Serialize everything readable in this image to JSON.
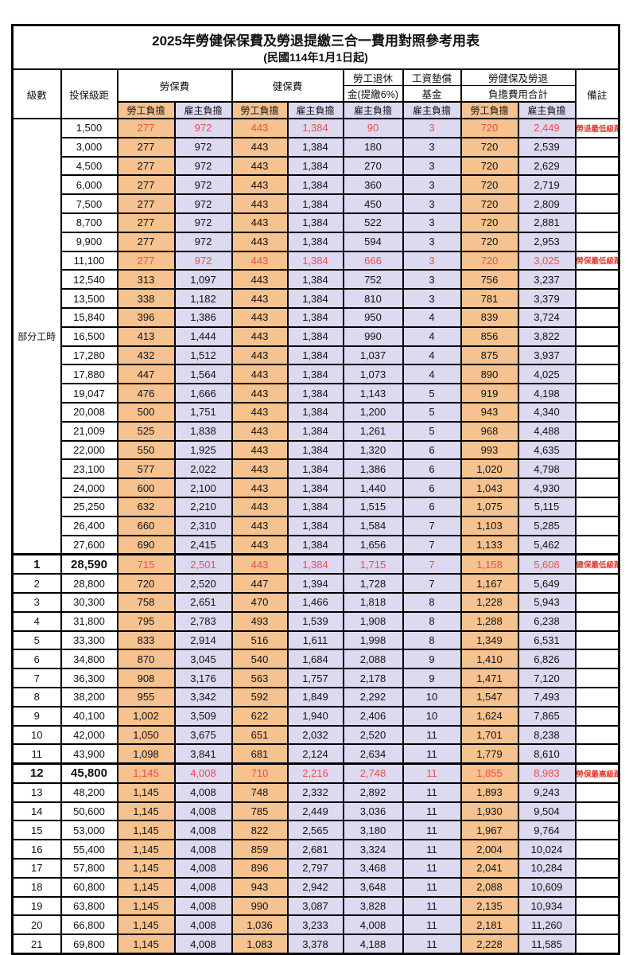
{
  "title": {
    "main": "2025年勞健保保費及勞退提繳三合一費用對照參考用表",
    "sub": "(民國114年1月1日起)"
  },
  "header": {
    "level": "級數",
    "bracket": "投保級距",
    "labor": "勞保費",
    "health": "健保費",
    "pension_line1": "勞工退休",
    "pension_line2": "金(提繳6%)",
    "wage_fund_line1": "工資墊償",
    "wage_fund_line2": "基金",
    "total_line1": "勞健保及勞退",
    "total_line2": "負擔費用合計",
    "note": "備註",
    "employee": "勞工負擔",
    "employer": "雇主負擔"
  },
  "part_time_label": "部分工時",
  "colors": {
    "employee_bg": "#F6C28F",
    "employer_bg": "#DDD9F0",
    "highlight_text": "#EE4E4B",
    "note_text": "#E03A34",
    "border": "#000000"
  },
  "rows": [
    {
      "level": "",
      "bracket": "1,500",
      "cells": [
        "277",
        "972",
        "443",
        "1,384",
        "90",
        "3",
        "720",
        "2,449"
      ],
      "note": "勞退最低級距",
      "red": true,
      "big": false
    },
    {
      "level": "",
      "bracket": "3,000",
      "cells": [
        "277",
        "972",
        "443",
        "1,384",
        "180",
        "3",
        "720",
        "2,539"
      ],
      "note": "",
      "red": false,
      "big": false
    },
    {
      "level": "",
      "bracket": "4,500",
      "cells": [
        "277",
        "972",
        "443",
        "1,384",
        "270",
        "3",
        "720",
        "2,629"
      ],
      "note": "",
      "red": false,
      "big": false
    },
    {
      "level": "",
      "bracket": "6,000",
      "cells": [
        "277",
        "972",
        "443",
        "1,384",
        "360",
        "3",
        "720",
        "2,719"
      ],
      "note": "",
      "red": false,
      "big": false
    },
    {
      "level": "",
      "bracket": "7,500",
      "cells": [
        "277",
        "972",
        "443",
        "1,384",
        "450",
        "3",
        "720",
        "2,809"
      ],
      "note": "",
      "red": false,
      "big": false
    },
    {
      "level": "",
      "bracket": "8,700",
      "cells": [
        "277",
        "972",
        "443",
        "1,384",
        "522",
        "3",
        "720",
        "2,881"
      ],
      "note": "",
      "red": false,
      "big": false
    },
    {
      "level": "",
      "bracket": "9,900",
      "cells": [
        "277",
        "972",
        "443",
        "1,384",
        "594",
        "3",
        "720",
        "2,953"
      ],
      "note": "",
      "red": false,
      "big": false
    },
    {
      "level": "",
      "bracket": "11,100",
      "cells": [
        "277",
        "972",
        "443",
        "1,384",
        "666",
        "3",
        "720",
        "3,025"
      ],
      "note": "勞保最低級距",
      "red": true,
      "big": false
    },
    {
      "level": "",
      "bracket": "12,540",
      "cells": [
        "313",
        "1,097",
        "443",
        "1,384",
        "752",
        "3",
        "756",
        "3,237"
      ],
      "note": "",
      "red": false,
      "big": false
    },
    {
      "level": "",
      "bracket": "13,500",
      "cells": [
        "338",
        "1,182",
        "443",
        "1,384",
        "810",
        "3",
        "781",
        "3,379"
      ],
      "note": "",
      "red": false,
      "big": false
    },
    {
      "level": "",
      "bracket": "15,840",
      "cells": [
        "396",
        "1,386",
        "443",
        "1,384",
        "950",
        "4",
        "839",
        "3,724"
      ],
      "note": "",
      "red": false,
      "big": false
    },
    {
      "level": "",
      "bracket": "16,500",
      "cells": [
        "413",
        "1,444",
        "443",
        "1,384",
        "990",
        "4",
        "856",
        "3,822"
      ],
      "note": "",
      "red": false,
      "big": false
    },
    {
      "level": "",
      "bracket": "17,280",
      "cells": [
        "432",
        "1,512",
        "443",
        "1,384",
        "1,037",
        "4",
        "875",
        "3,937"
      ],
      "note": "",
      "red": false,
      "big": false
    },
    {
      "level": "",
      "bracket": "17,880",
      "cells": [
        "447",
        "1,564",
        "443",
        "1,384",
        "1,073",
        "4",
        "890",
        "4,025"
      ],
      "note": "",
      "red": false,
      "big": false
    },
    {
      "level": "",
      "bracket": "19,047",
      "cells": [
        "476",
        "1,666",
        "443",
        "1,384",
        "1,143",
        "5",
        "919",
        "4,198"
      ],
      "note": "",
      "red": false,
      "big": false
    },
    {
      "level": "",
      "bracket": "20,008",
      "cells": [
        "500",
        "1,751",
        "443",
        "1,384",
        "1,200",
        "5",
        "943",
        "4,340"
      ],
      "note": "",
      "red": false,
      "big": false
    },
    {
      "level": "",
      "bracket": "21,009",
      "cells": [
        "525",
        "1,838",
        "443",
        "1,384",
        "1,261",
        "5",
        "968",
        "4,488"
      ],
      "note": "",
      "red": false,
      "big": false
    },
    {
      "level": "",
      "bracket": "22,000",
      "cells": [
        "550",
        "1,925",
        "443",
        "1,384",
        "1,320",
        "6",
        "993",
        "4,635"
      ],
      "note": "",
      "red": false,
      "big": false
    },
    {
      "level": "",
      "bracket": "23,100",
      "cells": [
        "577",
        "2,022",
        "443",
        "1,384",
        "1,386",
        "6",
        "1,020",
        "4,798"
      ],
      "note": "",
      "red": false,
      "big": false
    },
    {
      "level": "",
      "bracket": "24,000",
      "cells": [
        "600",
        "2,100",
        "443",
        "1,384",
        "1,440",
        "6",
        "1,043",
        "4,930"
      ],
      "note": "",
      "red": false,
      "big": false
    },
    {
      "level": "",
      "bracket": "25,250",
      "cells": [
        "632",
        "2,210",
        "443",
        "1,384",
        "1,515",
        "6",
        "1,075",
        "5,115"
      ],
      "note": "",
      "red": false,
      "big": false
    },
    {
      "level": "",
      "bracket": "26,400",
      "cells": [
        "660",
        "2,310",
        "443",
        "1,384",
        "1,584",
        "7",
        "1,103",
        "5,285"
      ],
      "note": "",
      "red": false,
      "big": false
    },
    {
      "level": "",
      "bracket": "27,600",
      "cells": [
        "690",
        "2,415",
        "443",
        "1,384",
        "1,656",
        "7",
        "1,133",
        "5,462"
      ],
      "note": "",
      "red": false,
      "big": false
    },
    {
      "level": "1",
      "bracket": "28,590",
      "cells": [
        "715",
        "2,501",
        "443",
        "1,384",
        "1,715",
        "7",
        "1,158",
        "5,608"
      ],
      "note": "健保最低級距",
      "red": true,
      "big": true
    },
    {
      "level": "2",
      "bracket": "28,800",
      "cells": [
        "720",
        "2,520",
        "447",
        "1,394",
        "1,728",
        "7",
        "1,167",
        "5,649"
      ],
      "note": "",
      "red": false,
      "big": false
    },
    {
      "level": "3",
      "bracket": "30,300",
      "cells": [
        "758",
        "2,651",
        "470",
        "1,466",
        "1,818",
        "8",
        "1,228",
        "5,943"
      ],
      "note": "",
      "red": false,
      "big": false
    },
    {
      "level": "4",
      "bracket": "31,800",
      "cells": [
        "795",
        "2,783",
        "493",
        "1,539",
        "1,908",
        "8",
        "1,288",
        "6,238"
      ],
      "note": "",
      "red": false,
      "big": false
    },
    {
      "level": "5",
      "bracket": "33,300",
      "cells": [
        "833",
        "2,914",
        "516",
        "1,611",
        "1,998",
        "8",
        "1,349",
        "6,531"
      ],
      "note": "",
      "red": false,
      "big": false
    },
    {
      "level": "6",
      "bracket": "34,800",
      "cells": [
        "870",
        "3,045",
        "540",
        "1,684",
        "2,088",
        "9",
        "1,410",
        "6,826"
      ],
      "note": "",
      "red": false,
      "big": false
    },
    {
      "level": "7",
      "bracket": "36,300",
      "cells": [
        "908",
        "3,176",
        "563",
        "1,757",
        "2,178",
        "9",
        "1,471",
        "7,120"
      ],
      "note": "",
      "red": false,
      "big": false
    },
    {
      "level": "8",
      "bracket": "38,200",
      "cells": [
        "955",
        "3,342",
        "592",
        "1,849",
        "2,292",
        "10",
        "1,547",
        "7,493"
      ],
      "note": "",
      "red": false,
      "big": false
    },
    {
      "level": "9",
      "bracket": "40,100",
      "cells": [
        "1,002",
        "3,509",
        "622",
        "1,940",
        "2,406",
        "10",
        "1,624",
        "7,865"
      ],
      "note": "",
      "red": false,
      "big": false
    },
    {
      "level": "10",
      "bracket": "42,000",
      "cells": [
        "1,050",
        "3,675",
        "651",
        "2,032",
        "2,520",
        "11",
        "1,701",
        "8,238"
      ],
      "note": "",
      "red": false,
      "big": false
    },
    {
      "level": "11",
      "bracket": "43,900",
      "cells": [
        "1,098",
        "3,841",
        "681",
        "2,124",
        "2,634",
        "11",
        "1,779",
        "8,610"
      ],
      "note": "",
      "red": false,
      "big": false
    },
    {
      "level": "12",
      "bracket": "45,800",
      "cells": [
        "1,145",
        "4,008",
        "710",
        "2,216",
        "2,748",
        "11",
        "1,855",
        "8,983"
      ],
      "note": "勞保最高級距",
      "red": true,
      "big": true
    },
    {
      "level": "13",
      "bracket": "48,200",
      "cells": [
        "1,145",
        "4,008",
        "748",
        "2,332",
        "2,892",
        "11",
        "1,893",
        "9,243"
      ],
      "note": "",
      "red": false,
      "big": false
    },
    {
      "level": "14",
      "bracket": "50,600",
      "cells": [
        "1,145",
        "4,008",
        "785",
        "2,449",
        "3,036",
        "11",
        "1,930",
        "9,504"
      ],
      "note": "",
      "red": false,
      "big": false
    },
    {
      "level": "15",
      "bracket": "53,000",
      "cells": [
        "1,145",
        "4,008",
        "822",
        "2,565",
        "3,180",
        "11",
        "1,967",
        "9,764"
      ],
      "note": "",
      "red": false,
      "big": false
    },
    {
      "level": "16",
      "bracket": "55,400",
      "cells": [
        "1,145",
        "4,008",
        "859",
        "2,681",
        "3,324",
        "11",
        "2,004",
        "10,024"
      ],
      "note": "",
      "red": false,
      "big": false
    },
    {
      "level": "17",
      "bracket": "57,800",
      "cells": [
        "1,145",
        "4,008",
        "896",
        "2,797",
        "3,468",
        "11",
        "2,041",
        "10,284"
      ],
      "note": "",
      "red": false,
      "big": false
    },
    {
      "level": "18",
      "bracket": "60,800",
      "cells": [
        "1,145",
        "4,008",
        "943",
        "2,942",
        "3,648",
        "11",
        "2,088",
        "10,609"
      ],
      "note": "",
      "red": false,
      "big": false
    },
    {
      "level": "19",
      "bracket": "63,800",
      "cells": [
        "1,145",
        "4,008",
        "990",
        "3,087",
        "3,828",
        "11",
        "2,135",
        "10,934"
      ],
      "note": "",
      "red": false,
      "big": false
    },
    {
      "level": "20",
      "bracket": "66,800",
      "cells": [
        "1,145",
        "4,008",
        "1,036",
        "3,233",
        "4,008",
        "11",
        "2,181",
        "11,260"
      ],
      "note": "",
      "red": false,
      "big": false
    },
    {
      "level": "21",
      "bracket": "69,800",
      "cells": [
        "1,145",
        "4,008",
        "1,083",
        "3,378",
        "4,188",
        "11",
        "2,228",
        "11,585"
      ],
      "note": "",
      "red": false,
      "big": false
    }
  ]
}
